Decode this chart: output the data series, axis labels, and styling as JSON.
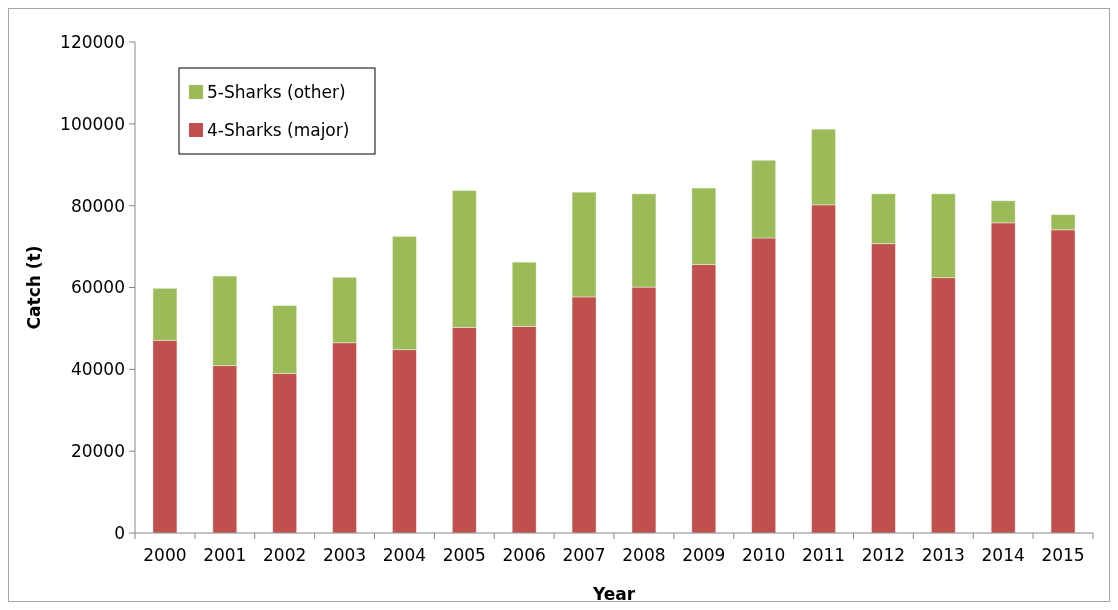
{
  "chart_data": {
    "type": "bar",
    "stacked": true,
    "xlabel": "Year",
    "ylabel": "Catch (t)",
    "categories": [
      "2000",
      "2001",
      "2002",
      "2003",
      "2004",
      "2005",
      "2006",
      "2007",
      "2008",
      "2009",
      "2010",
      "2011",
      "2012",
      "2013",
      "2014",
      "2015"
    ],
    "series": [
      {
        "name": "4-Sharks (major)",
        "color": "#c0504d",
        "values": [
          47100,
          40900,
          39000,
          46500,
          44800,
          50200,
          50500,
          57700,
          60100,
          65600,
          72100,
          80200,
          70700,
          62400,
          75800,
          74100
        ]
      },
      {
        "name": "5-Sharks (other)",
        "color": "#9bbb59",
        "values": [
          12700,
          21900,
          16600,
          16000,
          27700,
          33500,
          15700,
          25600,
          22800,
          18700,
          19000,
          18500,
          12200,
          20500,
          5400,
          3700
        ]
      }
    ],
    "ylim": [
      0,
      120000
    ],
    "yticks": [
      0,
      20000,
      40000,
      60000,
      80000,
      100000,
      120000
    ],
    "grid": false,
    "legend": "top left"
  }
}
